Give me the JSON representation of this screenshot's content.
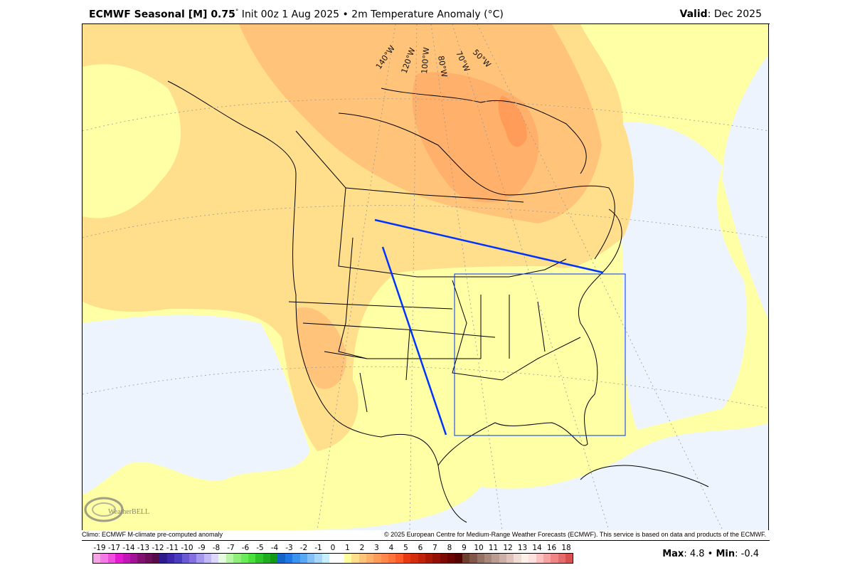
{
  "header": {
    "model": "ECMWF Seasonal [M] 0.75",
    "degree": "°",
    "init": " Init 00z 1 Aug 2025 • 2m Temperature Anomaly (°C)",
    "valid_label": "Valid",
    "valid_value": ": Dec 2025"
  },
  "map": {
    "longitude_labels": [
      "140°W",
      "120°W",
      "100°W",
      "80°W",
      "70°W",
      "50°W"
    ],
    "logo_text": "WeatherBELL Analytics LLC",
    "colors": {
      "ocean": "#eef4fd",
      "anom_0_1": "#ffffa6",
      "anom_1_2": "#ffde8c",
      "anom_2_3": "#ffc47a",
      "anom_3_4": "#ffb06a",
      "anom_4_5": "#ff9c5a",
      "overlay_lines": "#0033ff"
    }
  },
  "footer": {
    "climo": "Climo: ECMWF M-climate pre-computed anomaly",
    "copyright": "© 2025 European Centre for Medium-Range Weather Forecasts (ECMWF). This service is based on data and products of the ECMWF."
  },
  "colorbar": {
    "labels": [
      "-19",
      "-17",
      "-14",
      "-13",
      "-12",
      "-11",
      "-10",
      "-9",
      "-8",
      "-7",
      "-6",
      "-5",
      "-4",
      "-3",
      "-2",
      "-1",
      "0",
      "1",
      "2",
      "3",
      "4",
      "5",
      "6",
      "7",
      "8",
      "9",
      "10",
      "11",
      "12",
      "13",
      "14",
      "16",
      "18"
    ],
    "colors": [
      "#f7a3e8",
      "#f47ae4",
      "#ee4fdc",
      "#e21ad0",
      "#c117b4",
      "#a01396",
      "#82106f",
      "#6c0e5a",
      "#560b4b",
      "#2e1a8f",
      "#3b27a9",
      "#4a3cc0",
      "#6a5ad6",
      "#8470e0",
      "#a596ee",
      "#c2b8f5",
      "#dcd8fb",
      "#e6fbe0",
      "#b8f5a8",
      "#8ef07a",
      "#6aeb5a",
      "#4ae03e",
      "#2ec52a",
      "#1fad1f",
      "#139a14",
      "#1565c8",
      "#1f78e3",
      "#3a93ef",
      "#5aa8f5",
      "#82c0f7",
      "#a6d6fa",
      "#c8eefb",
      "#ffffff",
      "#ffffff",
      "#ffff9e",
      "#ffde8c",
      "#ffc47a",
      "#ffb06a",
      "#ff9c5a",
      "#ff884a",
      "#ff733c",
      "#ff5a2a",
      "#e83a12",
      "#d42c0c",
      "#c02208",
      "#a81805",
      "#921004",
      "#7e0802",
      "#6a0300",
      "#570000",
      "#6e3f2c",
      "#80574a",
      "#967264",
      "#a9887c",
      "#bb9c92",
      "#ccb0a6",
      "#e0c2ba",
      "#efdcd4",
      "#fcf0e8",
      "#ffe0e0",
      "#fcc2c2",
      "#f5a3a3",
      "#ee8686",
      "#e46c6c",
      "#d85050"
    ]
  },
  "stats": {
    "max_label": "Max",
    "max_value": ": 4.8",
    "sep": " • ",
    "min_label": "Min",
    "min_value": ": -0.4"
  }
}
